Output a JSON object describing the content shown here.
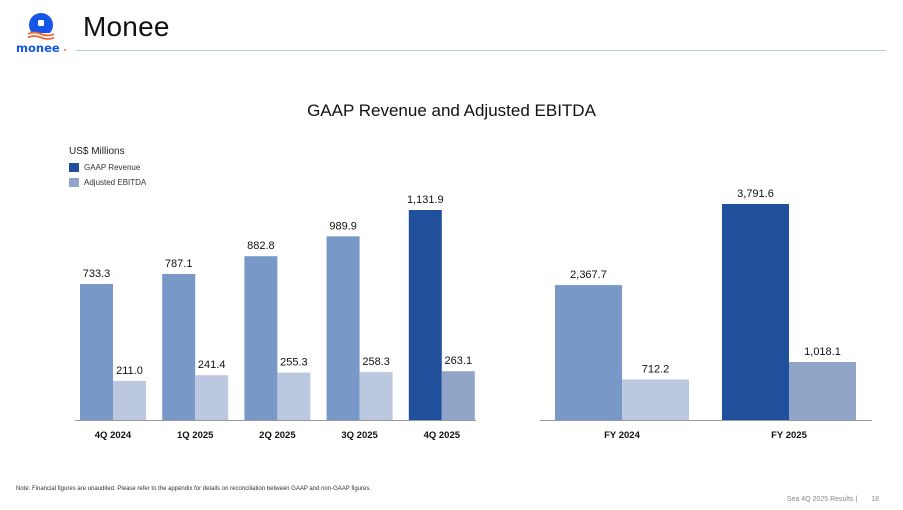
{
  "header": {
    "logo_text": "monee",
    "title": "Monee"
  },
  "colors": {
    "gaap_revenue": "#7899c8",
    "adjusted_ebitda": "#bcc8e0",
    "gaap_revenue_highlight": "#20509c",
    "adjusted_ebitda_highlight": "#91a5c9",
    "logo_blue": "#1556e6",
    "logo_orange": "#f2672e"
  },
  "legend": {
    "unit": "US$ Millions",
    "items": [
      {
        "label": "GAAP Revenue",
        "color": "#20509c"
      },
      {
        "label": "Adjusted EBITDA",
        "color": "#91a5c9"
      }
    ]
  },
  "chart_data": [
    {
      "type": "bar",
      "title": "GAAP Revenue and Adjusted EBITDA",
      "xlabel": "",
      "ylabel": "US$ Millions",
      "grid": false,
      "legend": "top-left",
      "categories": [
        "4Q 2024",
        "1Q 2025",
        "2Q 2025",
        "3Q 2025",
        "4Q 2025"
      ],
      "series": [
        {
          "name": "GAAP Revenue",
          "values": [
            733.3,
            787.1,
            882.8,
            989.9,
            1131.9
          ],
          "labels": [
            "733.3",
            "787.1",
            "882.8",
            "989.9",
            "1,131.9"
          ]
        },
        {
          "name": "Adjusted EBITDA",
          "values": [
            211.0,
            241.4,
            255.3,
            258.3,
            263.1
          ],
          "labels": [
            "211.0",
            "241.4",
            "255.3",
            "258.3",
            "263.1"
          ]
        }
      ],
      "highlight_category": "4Q 2025",
      "ylim": [
        0,
        1131.9
      ]
    },
    {
      "type": "bar",
      "title": "GAAP Revenue and Adjusted EBITDA",
      "xlabel": "",
      "ylabel": "US$ Millions",
      "grid": false,
      "categories": [
        "FY 2024",
        "FY 2025"
      ],
      "series": [
        {
          "name": "GAAP Revenue",
          "values": [
            2367.7,
            3791.6
          ],
          "labels": [
            "2,367.7",
            "3,791.6"
          ]
        },
        {
          "name": "Adjusted EBITDA",
          "values": [
            712.2,
            1018.1
          ],
          "labels": [
            "712.2",
            "1,018.1"
          ]
        }
      ],
      "highlight_category": "FY 2025",
      "ylim": [
        0,
        3791.6
      ]
    }
  ],
  "footnote": "Note: Financial figures are unaudited. Please refer to the appendix for details on reconciliation between GAAP and non-GAAP figures.",
  "footer": {
    "deck": "Sea 4Q 2025 Results |",
    "page_number": "18"
  }
}
